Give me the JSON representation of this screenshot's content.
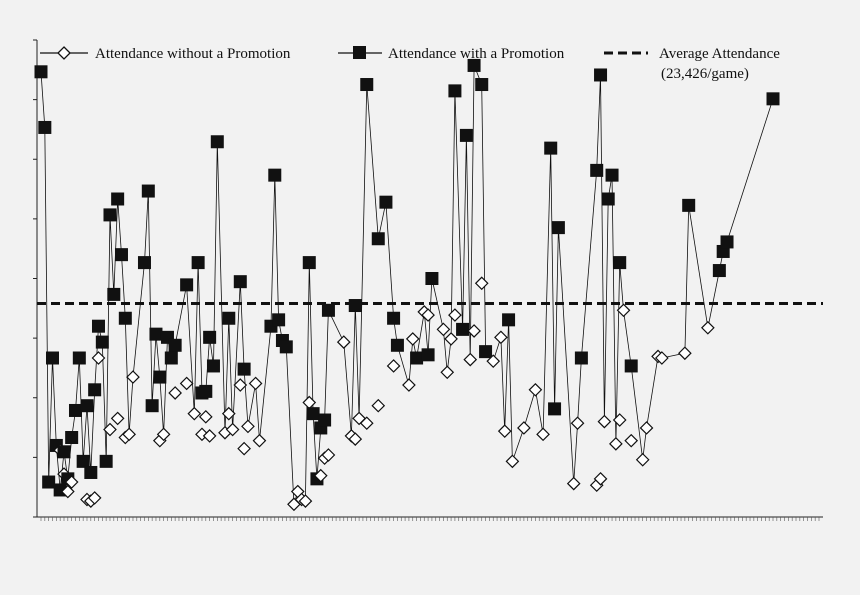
{
  "chart_data": {
    "type": "line",
    "title": "",
    "xlabel": "",
    "ylabel": "",
    "grid": false,
    "legend_position": "top",
    "reference_line": {
      "label": "Average Attendance",
      "label_line2": "(23,426/game)",
      "value": 23426
    },
    "ylim": [
      10000,
      40000
    ],
    "series": [
      {
        "name": "Attendance without a Promotion",
        "marker": "open-diamond",
        "values": [
          null,
          null,
          null,
          null,
          null,
          14200,
          12700,
          11600,
          12200,
          null,
          null,
          null,
          11100,
          11000,
          11200,
          20000,
          null,
          null,
          15500,
          null,
          16200,
          null,
          15000,
          15200,
          18800,
          null,
          null,
          null,
          null,
          null,
          null,
          14800,
          15200,
          null,
          null,
          17800,
          null,
          null,
          18400,
          null,
          16500,
          null,
          15200,
          16300,
          15100,
          null,
          null,
          null,
          15300,
          16500,
          15500,
          null,
          18300,
          14300,
          15700,
          null,
          18400,
          14800,
          null,
          null,
          null,
          null,
          null,
          null,
          null,
          null,
          10800,
          11600,
          11100,
          11000,
          17200,
          null,
          null,
          12600,
          13700,
          13900,
          null,
          null,
          null,
          21000,
          null,
          15100,
          14900,
          16200,
          null,
          15900,
          null,
          null,
          17000,
          null,
          null,
          null,
          19500,
          null,
          null,
          null,
          18300,
          21200,
          null,
          null,
          22900,
          22700,
          null,
          null,
          null,
          21800,
          19100,
          21200,
          22700,
          null,
          null,
          null,
          19900,
          21700,
          null,
          24700,
          null,
          null,
          19800,
          null,
          21300,
          15400,
          null,
          13500,
          null,
          null,
          15600,
          null,
          null,
          18000,
          null,
          15200,
          null,
          null,
          null,
          null,
          null,
          null,
          null,
          12100,
          15900,
          null,
          null,
          null,
          null,
          12000,
          12400,
          16000,
          null,
          null,
          14600,
          16100,
          23000,
          null,
          14800,
          null,
          null,
          13600,
          15600,
          null,
          null,
          20100,
          20000,
          null,
          null,
          null,
          null,
          null,
          20300,
          null,
          null,
          null,
          null,
          null,
          21900,
          null,
          null,
          null,
          null,
          null,
          null,
          null,
          null,
          null,
          null,
          null,
          null,
          null,
          null,
          null,
          null,
          null,
          null,
          null,
          null,
          null,
          null,
          null,
          null
        ]
      },
      {
        "name": "Attendance with a Promotion",
        "marker": "filled-square",
        "values": [
          38000,
          34500,
          12200,
          20000,
          14500,
          11700,
          14100,
          12400,
          15000,
          16700,
          20000,
          13500,
          17000,
          12800,
          18000,
          22000,
          21000,
          13500,
          29000,
          24000,
          30000,
          26500,
          22500,
          null,
          null,
          null,
          null,
          26000,
          30500,
          17000,
          21500,
          18800,
          null,
          21300,
          20000,
          20800,
          null,
          null,
          24600,
          null,
          null,
          26000,
          17800,
          17900,
          21300,
          19500,
          33600,
          null,
          null,
          22500,
          null,
          null,
          24800,
          19300,
          null,
          null,
          null,
          null,
          null,
          null,
          22000,
          31500,
          22400,
          21100,
          20700,
          null,
          null,
          null,
          null,
          null,
          26000,
          16500,
          12400,
          15600,
          16100,
          23000,
          null,
          null,
          null,
          null,
          null,
          null,
          23300,
          null,
          null,
          37200,
          null,
          null,
          27500,
          null,
          29800,
          null,
          22500,
          20800,
          null,
          null,
          null,
          null,
          20000,
          null,
          null,
          20200,
          25000,
          null,
          null,
          null,
          null,
          null,
          36800,
          null,
          21800,
          34000,
          null,
          38400,
          null,
          37200,
          20400,
          null,
          null,
          null,
          null,
          null,
          22400,
          null,
          null,
          null,
          null,
          null,
          null,
          null,
          null,
          null,
          null,
          33200,
          16800,
          28200,
          null,
          null,
          null,
          null,
          null,
          20000,
          null,
          null,
          null,
          31800,
          37800,
          null,
          30000,
          31500,
          null,
          26000,
          null,
          null,
          19500,
          null,
          null,
          null,
          null,
          null,
          null,
          null,
          null,
          null,
          null,
          null,
          null,
          null,
          null,
          29600,
          null,
          null,
          null,
          null,
          null,
          null,
          null,
          25500,
          26700,
          27300,
          null,
          null,
          null,
          null,
          null,
          null,
          null,
          null,
          null,
          null,
          null,
          36300,
          null,
          null,
          null,
          null,
          null,
          null,
          null,
          null,
          null,
          null,
          null,
          null
        ]
      }
    ]
  }
}
